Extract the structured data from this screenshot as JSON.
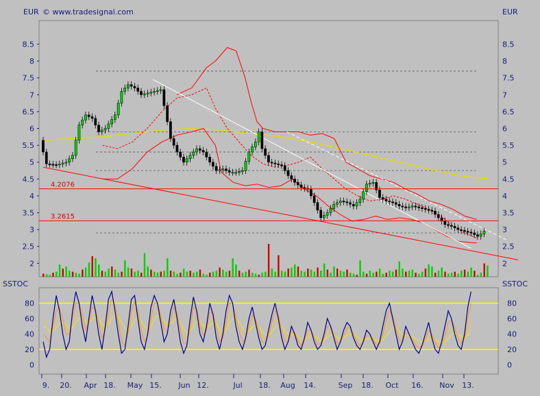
{
  "header": {
    "left_unit": "EUR",
    "right_unit": "EUR",
    "copyright": "© www.tradesignal.com",
    "ind_left": "SSTOC",
    "ind_right": "SSTOC"
  },
  "chart_data": [
    {
      "type": "candlestick",
      "currency": "EUR",
      "ylim": [
        1.6,
        9.2
      ],
      "y_ticks": [
        "2",
        "2.5",
        "3",
        "3.5",
        "4",
        "4.5",
        "5",
        "5.5",
        "6",
        "6.5",
        "7",
        "7.5",
        "8",
        "8.5"
      ],
      "x_labels": [
        "9.",
        "20.",
        "Apr",
        "18.",
        "May",
        "15.",
        "Jun",
        "12.",
        "Jul",
        "18.",
        "Aug",
        "14.",
        "Sep",
        "18.",
        "Oct",
        "16.",
        "Nov",
        "13."
      ],
      "levels": [
        {
          "label": "4.2076",
          "value": 4.2076
        },
        {
          "label": "3.2615",
          "value": 3.2615
        }
      ],
      "dotted_levels": [
        7.7,
        5.9,
        5.3,
        4.75,
        2.9
      ],
      "close_path": [
        [
          0,
          5.65
        ],
        [
          2,
          4.95
        ],
        [
          5,
          4.92
        ],
        [
          8,
          5.0
        ],
        [
          10,
          5.2
        ],
        [
          12,
          6.1
        ],
        [
          14,
          6.4
        ],
        [
          16,
          6.3
        ],
        [
          18,
          5.9
        ],
        [
          20,
          6.0
        ],
        [
          23,
          6.4
        ],
        [
          25,
          7.1
        ],
        [
          27,
          7.3
        ],
        [
          29,
          7.2
        ],
        [
          31,
          7.0
        ],
        [
          33,
          7.05
        ],
        [
          35,
          7.1
        ],
        [
          37,
          7.15
        ],
        [
          39,
          6.2
        ],
        [
          40,
          5.7
        ],
        [
          42,
          5.3
        ],
        [
          44,
          5.0
        ],
        [
          46,
          5.2
        ],
        [
          48,
          5.4
        ],
        [
          50,
          5.3
        ],
        [
          52,
          5.0
        ],
        [
          54,
          4.75
        ],
        [
          56,
          4.8
        ],
        [
          58,
          4.7
        ],
        [
          60,
          4.7
        ],
        [
          62,
          4.75
        ],
        [
          64,
          5.3
        ],
        [
          66,
          5.6
        ],
        [
          67,
          5.9
        ],
        [
          68,
          5.4
        ],
        [
          70,
          5.0
        ],
        [
          72,
          4.95
        ],
        [
          74,
          4.9
        ],
        [
          76,
          4.6
        ],
        [
          78,
          4.4
        ],
        [
          80,
          4.25
        ],
        [
          82,
          4.2
        ],
        [
          84,
          3.8
        ],
        [
          86,
          3.35
        ],
        [
          88,
          3.5
        ],
        [
          90,
          3.75
        ],
        [
          92,
          3.85
        ],
        [
          94,
          3.8
        ],
        [
          96,
          3.7
        ],
        [
          98,
          3.9
        ],
        [
          100,
          4.35
        ],
        [
          102,
          4.4
        ],
        [
          104,
          3.95
        ],
        [
          106,
          3.85
        ],
        [
          108,
          3.8
        ],
        [
          110,
          3.7
        ],
        [
          112,
          3.65
        ],
        [
          114,
          3.7
        ],
        [
          116,
          3.65
        ],
        [
          118,
          3.6
        ],
        [
          120,
          3.55
        ],
        [
          122,
          3.35
        ],
        [
          124,
          3.15
        ],
        [
          126,
          3.1
        ],
        [
          128,
          3.0
        ],
        [
          130,
          2.95
        ],
        [
          132,
          2.9
        ],
        [
          134,
          2.8
        ],
        [
          136,
          2.95
        ]
      ],
      "volume": [
        0.3,
        0.25,
        0.2,
        0.4,
        0.5,
        1.2,
        0.8,
        1.0,
        0.6,
        0.5,
        0.4,
        0.3,
        0.7,
        0.9,
        1.4,
        2.0,
        1.8,
        1.2,
        0.6,
        0.5,
        0.8,
        1.0,
        0.7,
        0.4,
        0.5,
        1.6,
        0.9,
        0.8,
        0.5,
        0.6,
        0.4,
        2.3,
        1.0,
        0.7,
        0.5,
        0.4,
        0.5,
        0.6,
        1.8,
        0.6,
        0.5,
        0.3,
        0.4,
        0.8,
        0.5,
        0.6,
        0.4,
        0.5,
        0.7,
        0.3,
        0.2,
        0.4,
        0.5,
        0.6,
        0.9,
        0.7,
        0.5,
        0.6,
        1.8,
        1.2,
        0.6,
        0.4,
        0.5,
        0.7,
        0.4,
        0.3,
        0.2,
        0.4,
        0.5,
        3.2,
        0.8,
        0.5,
        2.1,
        0.6,
        0.5,
        0.8,
        0.9,
        1.2,
        1.0,
        0.6,
        0.5,
        0.8,
        0.7,
        0.5,
        0.9,
        0.6,
        1.3,
        0.7,
        0.4,
        1.0,
        0.8,
        0.6,
        0.5,
        0.7,
        0.4,
        0.3,
        0.2,
        1.6,
        0.5,
        0.3,
        0.6,
        0.4,
        0.5,
        0.8,
        0.3,
        0.4,
        0.6,
        0.5,
        0.7,
        1.5,
        0.8,
        0.5,
        0.6,
        0.7,
        0.4,
        0.3,
        0.5,
        0.8,
        1.2,
        1.0,
        0.4,
        0.6,
        0.9,
        0.5,
        0.3,
        0.4,
        0.5,
        0.3,
        0.6,
        0.7,
        0.5,
        0.9,
        0.6,
        0.2,
        0.4,
        1.3,
        1.1
      ],
      "bollinger_upper": [
        [
          45,
          7.0
        ],
        [
          50,
          7.2
        ],
        [
          55,
          7.8
        ],
        [
          58,
          8.0
        ],
        [
          62,
          8.4
        ],
        [
          65,
          8.3
        ],
        [
          68,
          7.5
        ],
        [
          70,
          6.8
        ],
        [
          72,
          6.2
        ],
        [
          74,
          6.0
        ],
        [
          78,
          5.9
        ],
        [
          82,
          5.9
        ],
        [
          86,
          5.9
        ],
        [
          90,
          5.8
        ],
        [
          94,
          5.85
        ],
        [
          98,
          5.7
        ],
        [
          102,
          5.0
        ],
        [
          106,
          4.8
        ],
        [
          110,
          4.6
        ],
        [
          114,
          4.5
        ],
        [
          118,
          4.4
        ],
        [
          122,
          4.2
        ],
        [
          126,
          4.05
        ],
        [
          130,
          3.85
        ],
        [
          134,
          3.75
        ],
        [
          138,
          3.6
        ],
        [
          142,
          3.4
        ],
        [
          146,
          3.3
        ]
      ],
      "bollinger_mid": [
        [
          20,
          5.5
        ],
        [
          25,
          5.4
        ],
        [
          30,
          5.6
        ],
        [
          35,
          6.0
        ],
        [
          40,
          6.5
        ],
        [
          45,
          6.9
        ],
        [
          50,
          7.0
        ],
        [
          55,
          7.2
        ],
        [
          58,
          6.6
        ],
        [
          62,
          6.0
        ],
        [
          66,
          5.6
        ],
        [
          70,
          5.2
        ],
        [
          74,
          4.95
        ],
        [
          78,
          4.85
        ],
        [
          82,
          4.9
        ],
        [
          86,
          5.0
        ],
        [
          90,
          5.15
        ],
        [
          94,
          4.8
        ],
        [
          98,
          4.5
        ],
        [
          102,
          4.2
        ],
        [
          106,
          4.0
        ],
        [
          110,
          3.85
        ],
        [
          114,
          3.9
        ],
        [
          118,
          4.0
        ],
        [
          122,
          3.9
        ],
        [
          126,
          3.75
        ],
        [
          130,
          3.6
        ],
        [
          134,
          3.4
        ],
        [
          138,
          3.1
        ],
        [
          142,
          2.9
        ],
        [
          146,
          2.75
        ]
      ],
      "bollinger_lower": [
        [
          20,
          4.5
        ],
        [
          25,
          4.5
        ],
        [
          30,
          4.8
        ],
        [
          35,
          5.3
        ],
        [
          40,
          5.6
        ],
        [
          45,
          5.8
        ],
        [
          50,
          5.9
        ],
        [
          54,
          6.0
        ],
        [
          58,
          5.5
        ],
        [
          60,
          4.7
        ],
        [
          64,
          4.4
        ],
        [
          68,
          4.3
        ],
        [
          72,
          4.35
        ],
        [
          76,
          4.25
        ],
        [
          80,
          4.3
        ],
        [
          84,
          4.5
        ],
        [
          88,
          4.2
        ],
        [
          92,
          4.0
        ],
        [
          96,
          3.7
        ],
        [
          100,
          3.45
        ],
        [
          104,
          3.25
        ],
        [
          108,
          3.3
        ],
        [
          112,
          3.4
        ],
        [
          116,
          3.3
        ],
        [
          120,
          3.35
        ],
        [
          124,
          3.3
        ],
        [
          128,
          3.2
        ],
        [
          132,
          3.0
        ],
        [
          136,
          2.8
        ],
        [
          140,
          2.65
        ],
        [
          146,
          2.6
        ]
      ],
      "sma_yellow": [
        [
          0,
          5.65
        ],
        [
          10,
          5.7
        ],
        [
          20,
          5.75
        ],
        [
          30,
          5.85
        ],
        [
          40,
          5.95
        ],
        [
          50,
          6.0
        ],
        [
          60,
          5.95
        ],
        [
          70,
          5.85
        ],
        [
          80,
          5.75
        ],
        [
          90,
          5.6
        ],
        [
          100,
          5.4
        ],
        [
          110,
          5.2
        ],
        [
          120,
          5.0
        ],
        [
          130,
          4.8
        ],
        [
          140,
          4.6
        ],
        [
          150,
          4.5
        ]
      ],
      "trendlines": {
        "white_solid": [
          [
            37,
            7.45
          ],
          [
            144,
            2.45
          ]
        ],
        "white_dashed": [
          [
            82,
            5.9
          ],
          [
            156,
            2.7
          ]
        ],
        "red_support": [
          [
            0,
            4.85
          ],
          [
            160,
            2.1
          ]
        ]
      }
    },
    {
      "type": "line",
      "title": "SSTOC",
      "ylim": [
        -12,
        100
      ],
      "y_ticks": [
        "0",
        "20",
        "40",
        "60",
        "80"
      ],
      "bands": [
        80,
        20
      ],
      "k_line": [
        30,
        10,
        20,
        60,
        90,
        70,
        40,
        20,
        30,
        70,
        95,
        80,
        50,
        30,
        60,
        90,
        70,
        40,
        20,
        50,
        85,
        95,
        70,
        40,
        15,
        20,
        50,
        85,
        90,
        60,
        30,
        20,
        40,
        75,
        90,
        80,
        55,
        30,
        40,
        70,
        85,
        60,
        30,
        15,
        25,
        60,
        88,
        70,
        40,
        30,
        50,
        80,
        65,
        35,
        20,
        40,
        70,
        90,
        80,
        50,
        30,
        20,
        35,
        60,
        75,
        55,
        35,
        20,
        25,
        45,
        65,
        80,
        60,
        35,
        20,
        30,
        50,
        40,
        25,
        20,
        35,
        55,
        45,
        30,
        20,
        25,
        40,
        60,
        50,
        35,
        20,
        30,
        45,
        55,
        50,
        35,
        25,
        20,
        30,
        45,
        40,
        30,
        20,
        30,
        50,
        70,
        80,
        60,
        40,
        20,
        30,
        50,
        40,
        30,
        20,
        15,
        25,
        40,
        55,
        35,
        20,
        15,
        30,
        50,
        70,
        60,
        40,
        25,
        20,
        40,
        75,
        95
      ],
      "d_line": [
        40,
        35,
        30,
        50,
        70,
        75,
        60,
        40,
        40,
        60,
        80,
        80,
        65,
        45,
        55,
        75,
        72,
        55,
        35,
        45,
        70,
        85,
        78,
        55,
        30,
        25,
        40,
        70,
        82,
        70,
        45,
        30,
        38,
        60,
        80,
        80,
        65,
        45,
        42,
        58,
        75,
        68,
        45,
        28,
        28,
        48,
        75,
        72,
        52,
        38,
        45,
        68,
        68,
        48,
        30,
        35,
        58,
        80,
        80,
        62,
        42,
        30,
        33,
        50,
        65,
        60,
        45,
        30,
        28,
        38,
        55,
        70,
        65,
        45,
        30,
        30,
        42,
        42,
        32,
        25,
        32,
        45,
        45,
        36,
        27,
        27,
        35,
        50,
        50,
        40,
        28,
        30,
        38,
        48,
        48,
        40,
        30,
        25,
        30,
        38,
        38,
        33,
        26,
        28,
        40,
        58,
        70,
        65,
        48,
        32,
        30,
        42,
        40,
        33,
        26,
        22,
        25,
        33,
        45,
        40,
        30,
        22,
        25,
        38,
        55,
        58,
        48,
        35,
        28,
        35,
        60,
        80
      ],
      "slow_a": [
        60,
        50,
        40,
        45,
        55,
        62,
        58,
        48,
        42,
        52,
        65,
        70,
        62,
        52,
        55,
        65,
        66,
        58,
        46,
        46,
        58,
        70,
        70,
        60,
        45,
        38,
        42,
        58,
        70,
        66,
        52,
        42,
        44,
        55,
        68,
        70,
        64,
        52,
        48,
        54,
        64,
        62,
        50,
        38,
        36,
        44,
        60,
        64,
        56,
        46,
        46,
        56,
        60,
        52,
        40,
        38,
        48,
        64,
        70,
        62,
        50,
        40,
        38,
        46,
        56,
        56,
        48,
        38,
        34,
        38,
        48,
        58,
        58,
        48,
        38,
        34,
        40,
        42,
        36,
        30,
        32,
        40,
        42,
        38,
        32,
        30,
        34,
        42,
        44,
        40,
        33,
        32,
        36,
        42,
        44,
        40,
        35,
        30,
        31,
        35,
        36,
        34,
        30,
        30,
        35,
        45,
        55,
        56,
        48,
        38,
        34,
        38,
        38,
        35,
        30,
        27,
        28,
        32,
        38,
        37,
        32,
        27,
        27,
        32,
        42,
        48,
        45,
        38,
        32,
        33,
        45,
        60
      ],
      "slow_b": [
        50,
        48,
        44,
        44,
        48,
        54,
        56,
        52,
        47,
        48,
        55,
        61,
        61,
        56,
        55,
        59,
        62,
        60,
        53,
        50,
        53,
        60,
        65,
        63,
        55,
        47,
        45,
        50,
        58,
        62,
        57,
        50,
        47,
        50,
        58,
        63,
        63,
        58,
        53,
        53,
        58,
        60,
        55,
        47,
        42,
        43,
        50,
        56,
        56,
        51,
        48,
        51,
        55,
        54,
        47,
        43,
        45,
        53,
        60,
        61,
        56,
        48,
        43,
        44,
        49,
        52,
        50,
        44,
        39,
        38,
        42,
        48,
        52,
        50,
        44,
        39,
        38,
        40,
        38,
        34,
        32,
        35,
        38,
        38,
        35,
        32,
        32,
        36,
        39,
        39,
        36,
        34,
        35,
        38,
        40,
        40,
        37,
        34,
        32,
        33,
        34,
        34,
        32,
        31,
        32,
        37,
        43,
        48,
        48,
        44,
        39,
        38,
        38,
        37,
        34,
        31,
        30,
        31,
        33,
        34,
        33,
        30,
        29,
        30,
        34,
        39,
        41,
        40,
        37,
        35,
        38,
        45
      ]
    }
  ]
}
